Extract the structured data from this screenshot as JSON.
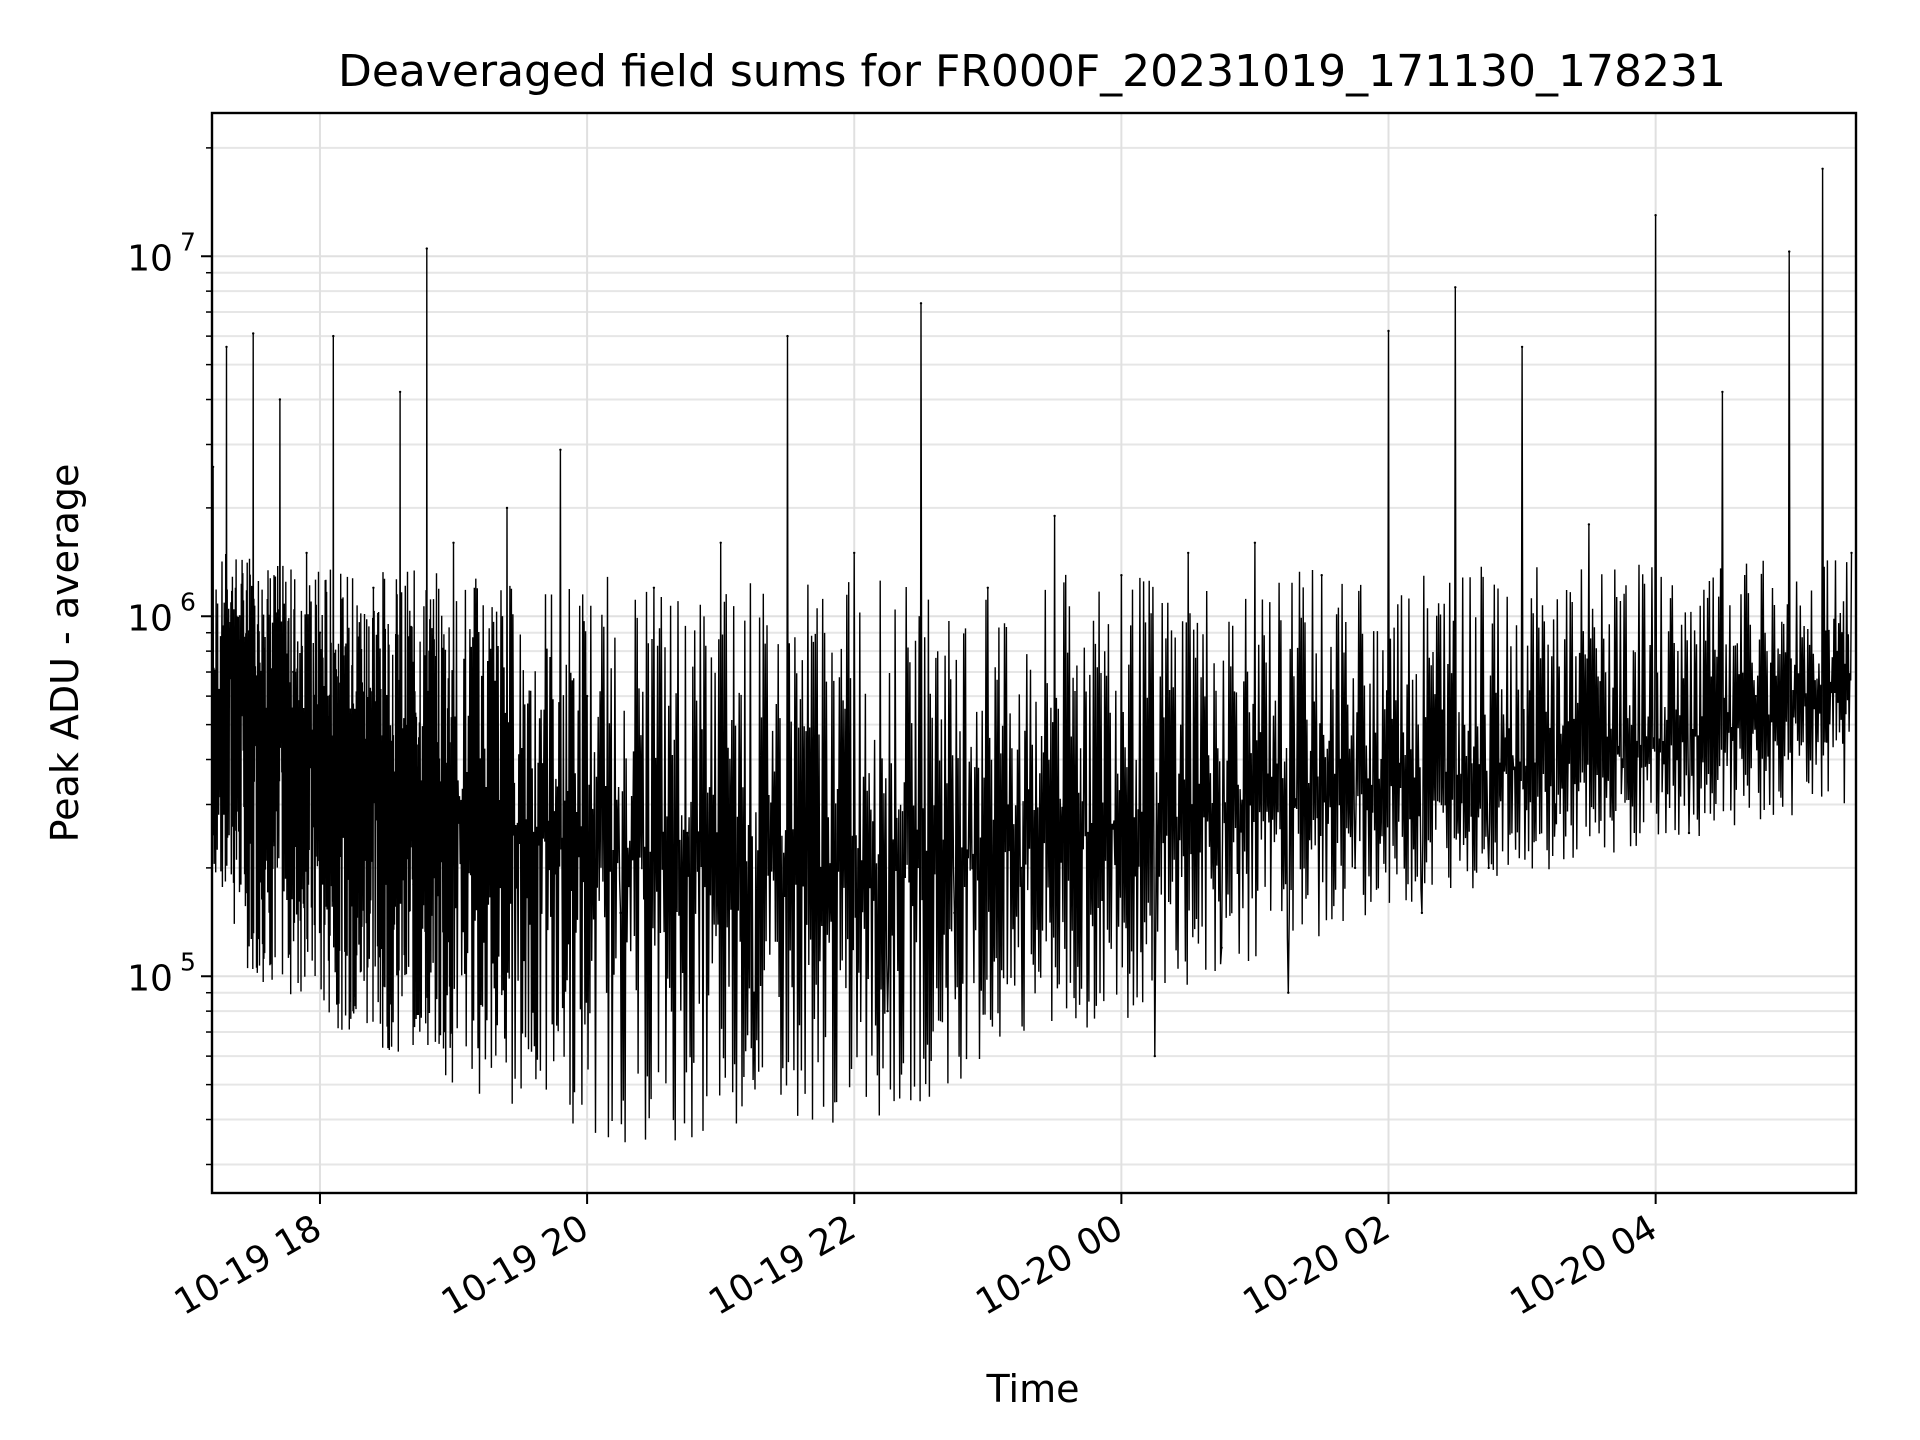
{
  "chart_data": {
    "type": "line",
    "title": "Deaveraged field sums for FR000F_20231019_171130_178231",
    "xlabel": "Time",
    "ylabel": "Peak ADU - average",
    "y_scale": "log",
    "grid": true,
    "xlim": [
      "2023-10-19 17:11:30",
      "2023-10-20 05:30:00"
    ],
    "ylim": [
      25000,
      25000000
    ],
    "x_ticks": [
      {
        "value": "2023-10-19 18:00",
        "label": "10-19 18"
      },
      {
        "value": "2023-10-19 20:00",
        "label": "10-19 20"
      },
      {
        "value": "2023-10-19 22:00",
        "label": "10-19 22"
      },
      {
        "value": "2023-10-20 00:00",
        "label": "10-20 00"
      },
      {
        "value": "2023-10-20 02:00",
        "label": "10-20 02"
      },
      {
        "value": "2023-10-20 04:00",
        "label": "10-20 04"
      }
    ],
    "y_ticks": [
      {
        "value": 100000,
        "base": "10",
        "exp": "5"
      },
      {
        "value": 1000000,
        "base": "10",
        "exp": "6"
      },
      {
        "value": 10000000,
        "base": "10",
        "exp": "7"
      }
    ],
    "series": [
      {
        "color": "#000000",
        "x": [
          "2023-10-19 17:12",
          "2023-10-19 17:18",
          "2023-10-19 17:24",
          "2023-10-19 17:30",
          "2023-10-19 17:36",
          "2023-10-19 17:42",
          "2023-10-19 17:48",
          "2023-10-19 17:54",
          "2023-10-19 18:00",
          "2023-10-19 18:06",
          "2023-10-19 18:12",
          "2023-10-19 18:18",
          "2023-10-19 18:24",
          "2023-10-19 18:30",
          "2023-10-19 18:36",
          "2023-10-19 18:42",
          "2023-10-19 18:48",
          "2023-10-19 18:54",
          "2023-10-19 19:00",
          "2023-10-19 19:12",
          "2023-10-19 19:24",
          "2023-10-19 19:36",
          "2023-10-19 19:48",
          "2023-10-19 20:00",
          "2023-10-19 20:15",
          "2023-10-19 20:30",
          "2023-10-19 20:45",
          "2023-10-19 21:00",
          "2023-10-19 21:15",
          "2023-10-19 21:30",
          "2023-10-19 21:45",
          "2023-10-19 22:00",
          "2023-10-19 22:15",
          "2023-10-19 22:30",
          "2023-10-19 22:45",
          "2023-10-19 23:00",
          "2023-10-19 23:15",
          "2023-10-19 23:30",
          "2023-10-19 23:45",
          "2023-10-20 00:00",
          "2023-10-20 00:15",
          "2023-10-20 00:30",
          "2023-10-20 00:45",
          "2023-10-20 01:00",
          "2023-10-20 01:15",
          "2023-10-20 01:30",
          "2023-10-20 01:45",
          "2023-10-20 02:00",
          "2023-10-20 02:15",
          "2023-10-20 02:30",
          "2023-10-20 02:45",
          "2023-10-20 03:00",
          "2023-10-20 03:15",
          "2023-10-20 03:30",
          "2023-10-20 03:45",
          "2023-10-20 04:00",
          "2023-10-20 04:15",
          "2023-10-20 04:30",
          "2023-10-20 04:45",
          "2023-10-20 05:00",
          "2023-10-20 05:15",
          "2023-10-20 05:28"
        ],
        "y": [
          2600000,
          5600000,
          1000000,
          6100000,
          500000,
          4000000,
          700000,
          1500000,
          900000,
          6000000,
          250000,
          800000,
          1200000,
          600000,
          4200000,
          180000,
          10500000,
          300000,
          1600000,
          400000,
          2000000,
          250000,
          2900000,
          600000,
          150000,
          1200000,
          250000,
          1600000,
          90000,
          6000000,
          200000,
          1500000,
          80000,
          7400000,
          150000,
          1200000,
          200000,
          1900000,
          250000,
          1300000,
          60000,
          1500000,
          120000,
          1600000,
          90000,
          1300000,
          200000,
          6200000,
          150000,
          8200000,
          200000,
          5600000,
          300000,
          1800000,
          400000,
          13000000,
          250000,
          4200000,
          600000,
          10300000,
          17500000,
          1500000
        ],
        "y_low": [
          200000,
          130000,
          110000,
          100000,
          95000,
          90000,
          85000,
          80000,
          75000,
          72000,
          70000,
          68000,
          65000,
          62000,
          60000,
          60000,
          58000,
          55000,
          50000,
          45000,
          42000,
          40000,
          38000,
          36000,
          34000,
          33000,
          35000,
          37000,
          40000,
          42000,
          38000,
          35000,
          40000,
          45000,
          50000,
          55000,
          60000,
          65000,
          70000,
          75000,
          80000,
          90000,
          100000,
          110000,
          120000,
          130000,
          140000,
          150000,
          160000,
          170000,
          180000,
          190000,
          200000,
          210000,
          220000,
          230000,
          240000,
          250000,
          260000,
          270000,
          280000,
          300000
        ],
        "y_mid": [
          300000,
          900000,
          700000,
          600000,
          550000,
          500000,
          450000,
          420000,
          400000,
          380000,
          360000,
          350000,
          340000,
          330000,
          320000,
          310000,
          300000,
          290000,
          280000,
          270000,
          260000,
          250000,
          240000,
          230000,
          220000,
          215000,
          210000,
          205000,
          200000,
          200000,
          200000,
          200000,
          205000,
          210000,
          215000,
          220000,
          230000,
          240000,
          250000,
          260000,
          270000,
          280000,
          290000,
          300000,
          310000,
          320000,
          330000,
          340000,
          350000,
          360000,
          370000,
          380000,
          390000,
          400000,
          420000,
          440000,
          460000,
          480000,
          500000,
          550000,
          600000,
          700000
        ]
      }
    ]
  }
}
